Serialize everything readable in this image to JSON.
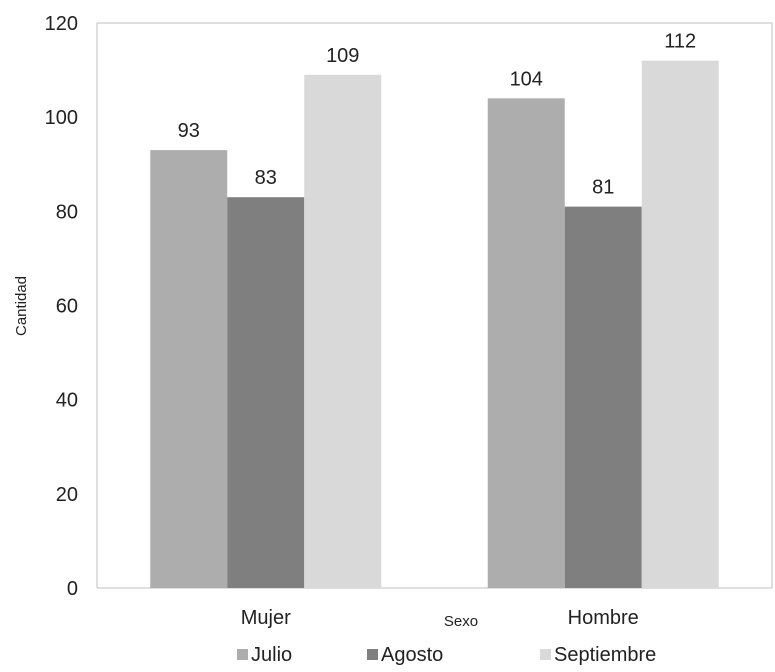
{
  "chart_data": {
    "type": "bar",
    "title": "",
    "xlabel": "Sexo",
    "ylabel": "Cantidad",
    "categories": [
      "Mujer",
      "Hombre"
    ],
    "series": [
      {
        "name": "Julio",
        "values": [
          93,
          104
        ],
        "color": "#adadad"
      },
      {
        "name": "Agosto",
        "values": [
          83,
          81
        ],
        "color": "#7f7f7f"
      },
      {
        "name": "Septiembre",
        "values": [
          109,
          112
        ],
        "color": "#d9d9d9"
      }
    ],
    "ylim": [
      0,
      120
    ],
    "yticks": [
      0,
      20,
      40,
      60,
      80,
      100,
      120
    ],
    "grid": false,
    "data_labels": true,
    "legend_position": "bottom",
    "axis_color": "#bfbfbf"
  }
}
